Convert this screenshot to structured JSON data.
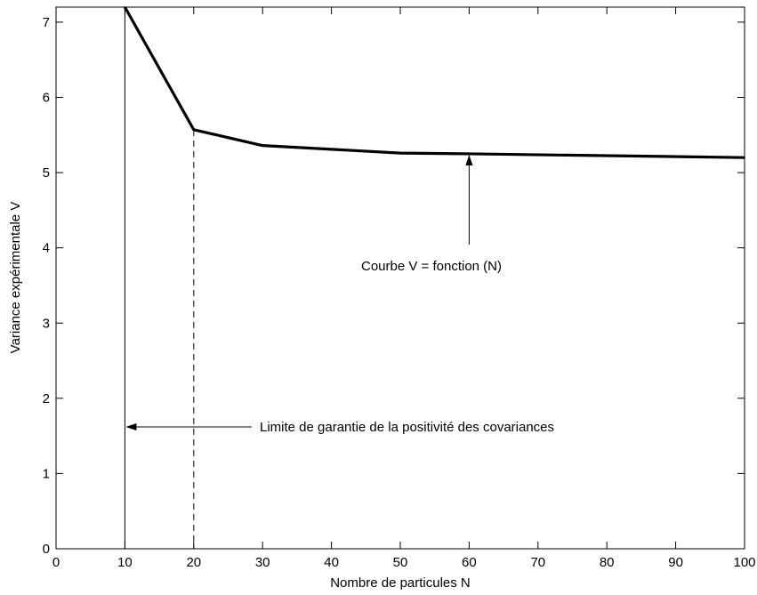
{
  "chart_data": {
    "type": "line",
    "title": "",
    "xlabel": "Nombre de particules N",
    "ylabel": "Variance expérimentale V",
    "xlim": [
      0,
      100
    ],
    "ylim": [
      0,
      7.2
    ],
    "x_ticks": [
      0,
      10,
      20,
      30,
      40,
      50,
      60,
      70,
      80,
      90,
      100
    ],
    "y_ticks": [
      0,
      1,
      2,
      3,
      4,
      5,
      6,
      7
    ],
    "grid": false,
    "series": [
      {
        "x": [
          10,
          20,
          30,
          50,
          60,
          100
        ],
        "y": [
          7.2,
          5.57,
          5.36,
          5.26,
          5.25,
          5.2
        ],
        "color": "#000000",
        "style": "solid-thick"
      }
    ],
    "reference_lines": [
      {
        "x": 10,
        "style": "solid"
      },
      {
        "x": 20,
        "style": "dashed"
      }
    ],
    "annotations": [
      {
        "text": "Courbe V = fonction (N)",
        "arrow_to": [
          60,
          5.25
        ]
      },
      {
        "text": "Limite de garantie de la positivité des covariances",
        "arrow_to": [
          10,
          1.62
        ]
      }
    ]
  }
}
